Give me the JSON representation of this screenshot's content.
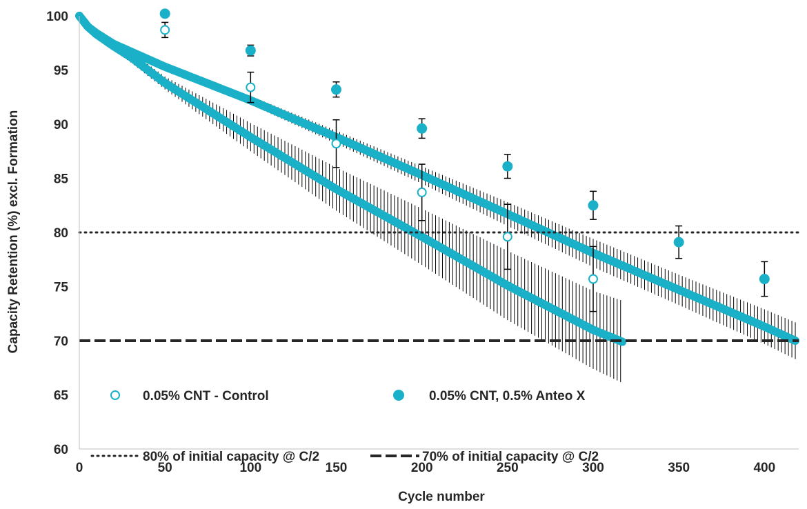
{
  "chart_data": {
    "type": "scatter",
    "xlabel": "Cycle number",
    "ylabel": "Capacity Retention (%) excl. Formation",
    "xlim": [
      0,
      420
    ],
    "ylim": [
      60,
      100
    ],
    "x_ticks": [
      "0",
      "50",
      "100",
      "150",
      "200",
      "250",
      "300",
      "350",
      "400"
    ],
    "y_ticks": [
      "60",
      "65",
      "70",
      "75",
      "80",
      "85",
      "90",
      "95",
      "100"
    ],
    "grid": false,
    "legend_placement": "bottom-inside",
    "series": [
      {
        "name": "0.05% CNT - Control",
        "marker": "open-circle",
        "color": "#1ab0c8",
        "continuous_end_cycle": 317,
        "continuous_curve": {
          "x": [
            0,
            5,
            10,
            20,
            30,
            50,
            100,
            150,
            200,
            250,
            300,
            317
          ],
          "y": [
            100,
            99.0,
            98.3,
            97.2,
            96.2,
            93.8,
            88.8,
            84.0,
            79.6,
            75.1,
            71.0,
            69.9
          ],
          "error": [
            0,
            0.2,
            0.3,
            0.4,
            0.5,
            0.6,
            1.3,
            2.0,
            2.6,
            3.2,
            3.6,
            3.8
          ]
        },
        "markers": {
          "x": [
            50,
            100,
            150,
            200,
            250,
            300
          ],
          "y": [
            98.7,
            93.4,
            88.2,
            83.7,
            79.6,
            75.7
          ],
          "error": [
            0.7,
            1.4,
            2.2,
            2.6,
            3.0,
            3.0
          ]
        }
      },
      {
        "name": "0.05% CNT, 0.5% Anteo X",
        "marker": "filled-circle",
        "color": "#1ab0c8",
        "continuous_end_cycle": 418,
        "continuous_curve": {
          "x": [
            0,
            5,
            10,
            20,
            30,
            50,
            100,
            150,
            200,
            250,
            300,
            350,
            400,
            418
          ],
          "y": [
            100,
            99.0,
            98.4,
            97.4,
            96.7,
            95.3,
            92.2,
            88.8,
            85.3,
            81.7,
            78.1,
            74.7,
            71.3,
            70.0
          ],
          "error": [
            0,
            0.1,
            0.1,
            0.2,
            0.2,
            0.3,
            0.4,
            0.6,
            0.8,
            1.1,
            1.3,
            1.4,
            1.6,
            1.7
          ]
        },
        "markers": {
          "x": [
            50,
            100,
            150,
            200,
            250,
            300,
            350,
            400
          ],
          "y": [
            100.2,
            96.8,
            93.2,
            89.6,
            86.1,
            82.5,
            79.1,
            75.7
          ],
          "error": [
            0.1,
            0.5,
            0.7,
            0.9,
            1.1,
            1.3,
            1.5,
            1.6
          ]
        }
      }
    ],
    "reference_lines": [
      {
        "name": "80% of initial capacity @ C/2",
        "y": 80,
        "style": "dotted",
        "color": "#262626"
      },
      {
        "name": "70% of initial capacity @ C/2",
        "y": 70,
        "style": "dashed",
        "color": "#262626"
      }
    ]
  }
}
